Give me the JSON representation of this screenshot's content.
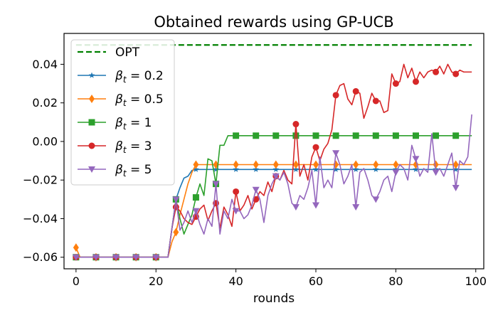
{
  "chart_data": {
    "type": "line",
    "title": "Obtained rewards using GP-UCB",
    "xlabel": "rounds",
    "ylabel": "",
    "xlim": [
      -3,
      102
    ],
    "ylim": [
      -0.066,
      0.056
    ],
    "xticks": [
      0,
      20,
      40,
      60,
      80,
      100
    ],
    "xtick_labels": [
      "0",
      "20",
      "40",
      "60",
      "80",
      "100"
    ],
    "yticks": [
      -0.06,
      -0.04,
      -0.02,
      0.0,
      0.02,
      0.04
    ],
    "ytick_labels": [
      "−0.06",
      "−0.04",
      "−0.02",
      "0.00",
      "0.02",
      "0.04"
    ],
    "grid": false,
    "legend_position": "top-left",
    "marker_every": 5,
    "series": [
      {
        "name": "OPT",
        "legend": {
          "main": "OPT"
        },
        "color": "#008000",
        "style": "dashed",
        "marker": "none",
        "x": [
          0,
          99
        ],
        "y": [
          0.05,
          0.05
        ]
      },
      {
        "name": "β_t = 0.2",
        "legend": {
          "main": "β",
          "sub": "t",
          "rest": " = 0.2"
        },
        "color": "#1f77b4",
        "style": "solid",
        "marker": "star",
        "x": [
          0,
          1,
          2,
          3,
          4,
          5,
          6,
          7,
          8,
          9,
          10,
          11,
          12,
          13,
          14,
          15,
          16,
          17,
          18,
          19,
          20,
          21,
          22,
          23,
          24,
          25,
          26,
          27,
          28,
          29,
          30,
          31,
          32,
          33,
          34,
          35,
          36,
          37,
          38,
          39,
          40,
          41,
          42,
          43,
          44,
          45,
          46,
          47,
          48,
          49,
          50,
          51,
          52,
          53,
          54,
          55,
          56,
          57,
          58,
          59,
          60,
          61,
          62,
          63,
          64,
          65,
          66,
          67,
          68,
          69,
          70,
          71,
          72,
          73,
          74,
          75,
          76,
          77,
          78,
          79,
          80,
          81,
          82,
          83,
          84,
          85,
          86,
          87,
          88,
          89,
          90,
          91,
          92,
          93,
          94,
          95,
          96,
          97,
          98,
          99
        ],
        "y": [
          -0.06,
          -0.06,
          -0.06,
          -0.06,
          -0.06,
          -0.06,
          -0.06,
          -0.06,
          -0.06,
          -0.06,
          -0.06,
          -0.06,
          -0.06,
          -0.06,
          -0.06,
          -0.06,
          -0.06,
          -0.06,
          -0.06,
          -0.06,
          -0.06,
          -0.06,
          -0.06,
          -0.06,
          -0.045,
          -0.03,
          -0.024,
          -0.019,
          -0.018,
          -0.015,
          -0.0145,
          -0.0145,
          -0.0145,
          -0.0145,
          -0.0145,
          -0.0145,
          -0.0145,
          -0.0145,
          -0.0145,
          -0.0145,
          -0.0145,
          -0.0145,
          -0.0145,
          -0.0145,
          -0.0145,
          -0.0145,
          -0.0145,
          -0.0145,
          -0.0145,
          -0.0145,
          -0.0145,
          -0.0145,
          -0.0145,
          -0.0145,
          -0.0145,
          -0.0145,
          -0.0145,
          -0.0145,
          -0.0145,
          -0.0145,
          -0.0145,
          -0.0145,
          -0.0145,
          -0.0145,
          -0.0145,
          -0.0145,
          -0.0145,
          -0.0145,
          -0.0145,
          -0.0145,
          -0.0145,
          -0.0145,
          -0.0145,
          -0.0145,
          -0.0145,
          -0.0145,
          -0.0145,
          -0.0145,
          -0.0145,
          -0.0145,
          -0.0145,
          -0.0145,
          -0.0145,
          -0.0145,
          -0.0145,
          -0.0145,
          -0.0145,
          -0.0145,
          -0.0145,
          -0.0145,
          -0.0145,
          -0.0145,
          -0.0145,
          -0.0145,
          -0.0145,
          -0.0145,
          -0.0145,
          -0.0145,
          -0.0145,
          -0.0145
        ]
      },
      {
        "name": "β_t = 0.5",
        "legend": {
          "main": "β",
          "sub": "t",
          "rest": " = 0.5"
        },
        "color": "#ff7f0e",
        "style": "solid",
        "marker": "diamond",
        "x": [
          0,
          1,
          2,
          3,
          4,
          5,
          6,
          7,
          8,
          9,
          10,
          11,
          12,
          13,
          14,
          15,
          16,
          17,
          18,
          19,
          20,
          21,
          22,
          23,
          24,
          25,
          26,
          27,
          28,
          29,
          30,
          31,
          32,
          33,
          34,
          35,
          36,
          37,
          38,
          39,
          40,
          41,
          42,
          43,
          44,
          45,
          46,
          47,
          48,
          49,
          50,
          51,
          52,
          53,
          54,
          55,
          56,
          57,
          58,
          59,
          60,
          61,
          62,
          63,
          64,
          65,
          66,
          67,
          68,
          69,
          70,
          71,
          72,
          73,
          74,
          75,
          76,
          77,
          78,
          79,
          80,
          81,
          82,
          83,
          84,
          85,
          86,
          87,
          88,
          89,
          90,
          91,
          92,
          93,
          94,
          95,
          96,
          97,
          98,
          99
        ],
        "y": [
          -0.055,
          -0.06,
          -0.06,
          -0.06,
          -0.06,
          -0.06,
          -0.06,
          -0.06,
          -0.06,
          -0.06,
          -0.06,
          -0.06,
          -0.06,
          -0.06,
          -0.06,
          -0.06,
          -0.06,
          -0.06,
          -0.06,
          -0.06,
          -0.06,
          -0.06,
          -0.06,
          -0.06,
          -0.052,
          -0.047,
          -0.038,
          -0.03,
          -0.022,
          -0.016,
          -0.012,
          -0.012,
          -0.012,
          -0.012,
          -0.012,
          -0.012,
          -0.012,
          -0.012,
          -0.012,
          -0.012,
          -0.012,
          -0.012,
          -0.012,
          -0.012,
          -0.012,
          -0.012,
          -0.012,
          -0.012,
          -0.012,
          -0.012,
          -0.012,
          -0.012,
          -0.012,
          -0.012,
          -0.012,
          -0.012,
          -0.012,
          -0.012,
          -0.012,
          -0.012,
          -0.012,
          -0.012,
          -0.012,
          -0.012,
          -0.012,
          -0.012,
          -0.012,
          -0.012,
          -0.012,
          -0.012,
          -0.012,
          -0.012,
          -0.012,
          -0.012,
          -0.012,
          -0.012,
          -0.012,
          -0.012,
          -0.012,
          -0.012,
          -0.012,
          -0.012,
          -0.012,
          -0.012,
          -0.012,
          -0.012,
          -0.012,
          -0.012,
          -0.012,
          -0.012,
          -0.012,
          -0.012,
          -0.012,
          -0.012,
          -0.012,
          -0.012,
          -0.012,
          -0.012,
          -0.012,
          -0.012
        ]
      },
      {
        "name": "β_t = 1",
        "legend": {
          "main": "β",
          "sub": "t",
          "rest": " = 1"
        },
        "color": "#2ca02c",
        "style": "solid",
        "marker": "square",
        "x": [
          0,
          1,
          2,
          3,
          4,
          5,
          6,
          7,
          8,
          9,
          10,
          11,
          12,
          13,
          14,
          15,
          16,
          17,
          18,
          19,
          20,
          21,
          22,
          23,
          24,
          25,
          26,
          27,
          28,
          29,
          30,
          31,
          32,
          33,
          34,
          35,
          36,
          37,
          38,
          39,
          40,
          41,
          42,
          43,
          44,
          45,
          46,
          47,
          48,
          49,
          50,
          51,
          52,
          53,
          54,
          55,
          56,
          57,
          58,
          59,
          60,
          61,
          62,
          63,
          64,
          65,
          66,
          67,
          68,
          69,
          70,
          71,
          72,
          73,
          74,
          75,
          76,
          77,
          78,
          79,
          80,
          81,
          82,
          83,
          84,
          85,
          86,
          87,
          88,
          89,
          90,
          91,
          92,
          93,
          94,
          95,
          96,
          97,
          98,
          99
        ],
        "y": [
          -0.06,
          -0.06,
          -0.06,
          -0.06,
          -0.06,
          -0.06,
          -0.06,
          -0.06,
          -0.06,
          -0.06,
          -0.06,
          -0.06,
          -0.06,
          -0.06,
          -0.06,
          -0.06,
          -0.06,
          -0.06,
          -0.06,
          -0.06,
          -0.06,
          -0.06,
          -0.06,
          -0.06,
          -0.045,
          -0.03,
          -0.04,
          -0.048,
          -0.043,
          -0.038,
          -0.029,
          -0.022,
          -0.028,
          -0.009,
          -0.01,
          -0.022,
          -0.002,
          -0.002,
          0.003,
          0.003,
          0.003,
          0.003,
          0.003,
          0.003,
          0.003,
          0.003,
          0.003,
          0.003,
          0.003,
          0.003,
          0.003,
          0.003,
          0.003,
          0.003,
          0.003,
          0.003,
          0.003,
          0.003,
          0.003,
          0.003,
          0.003,
          0.003,
          0.003,
          0.003,
          0.003,
          0.003,
          0.003,
          0.003,
          0.003,
          0.003,
          0.003,
          0.003,
          0.003,
          0.003,
          0.003,
          0.003,
          0.003,
          0.003,
          0.003,
          0.003,
          0.003,
          0.003,
          0.003,
          0.003,
          0.003,
          0.003,
          0.003,
          0.003,
          0.003,
          0.003,
          0.003,
          0.003,
          0.003,
          0.003,
          0.003,
          0.003,
          0.003,
          0.003,
          0.003,
          0.003
        ]
      },
      {
        "name": "β_t = 3",
        "legend": {
          "main": "β",
          "sub": "t",
          "rest": " = 3"
        },
        "color": "#d62728",
        "style": "solid",
        "marker": "circle",
        "x": [
          0,
          1,
          2,
          3,
          4,
          5,
          6,
          7,
          8,
          9,
          10,
          11,
          12,
          13,
          14,
          15,
          16,
          17,
          18,
          19,
          20,
          21,
          22,
          23,
          24,
          25,
          26,
          27,
          28,
          29,
          30,
          31,
          32,
          33,
          34,
          35,
          36,
          37,
          38,
          39,
          40,
          41,
          42,
          43,
          44,
          45,
          46,
          47,
          48,
          49,
          50,
          51,
          52,
          53,
          54,
          55,
          56,
          57,
          58,
          59,
          60,
          61,
          62,
          63,
          64,
          65,
          66,
          67,
          68,
          69,
          70,
          71,
          72,
          73,
          74,
          75,
          76,
          77,
          78,
          79,
          80,
          81,
          82,
          83,
          84,
          85,
          86,
          87,
          88,
          89,
          90,
          91,
          92,
          93,
          94,
          95,
          96,
          97,
          98,
          99
        ],
        "y": [
          -0.06,
          -0.06,
          -0.06,
          -0.06,
          -0.06,
          -0.06,
          -0.06,
          -0.06,
          -0.06,
          -0.06,
          -0.06,
          -0.06,
          -0.06,
          -0.06,
          -0.06,
          -0.06,
          -0.06,
          -0.06,
          -0.06,
          -0.06,
          -0.06,
          -0.06,
          -0.06,
          -0.06,
          -0.045,
          -0.034,
          -0.036,
          -0.04,
          -0.042,
          -0.043,
          -0.039,
          -0.035,
          -0.033,
          -0.041,
          -0.036,
          -0.032,
          -0.045,
          -0.034,
          -0.038,
          -0.044,
          -0.026,
          -0.036,
          -0.033,
          -0.028,
          -0.035,
          -0.03,
          -0.026,
          -0.028,
          -0.021,
          -0.026,
          -0.018,
          -0.02,
          -0.015,
          -0.02,
          -0.022,
          0.009,
          -0.018,
          -0.012,
          -0.02,
          -0.008,
          -0.003,
          -0.01,
          -0.004,
          -0.001,
          0.006,
          0.024,
          0.029,
          0.03,
          0.022,
          0.019,
          0.026,
          0.025,
          0.012,
          0.018,
          0.025,
          0.021,
          0.021,
          0.015,
          0.016,
          0.035,
          0.03,
          0.031,
          0.04,
          0.033,
          0.038,
          0.031,
          0.036,
          0.033,
          0.036,
          0.037,
          0.036,
          0.039,
          0.035,
          0.04,
          0.036,
          0.035,
          0.037,
          0.036,
          0.036,
          0.036
        ]
      },
      {
        "name": "β_t = 5",
        "legend": {
          "main": "β",
          "sub": "t",
          "rest": " = 5"
        },
        "color": "#9467bd",
        "style": "solid",
        "marker": "triangle-down",
        "x": [
          0,
          1,
          2,
          3,
          4,
          5,
          6,
          7,
          8,
          9,
          10,
          11,
          12,
          13,
          14,
          15,
          16,
          17,
          18,
          19,
          20,
          21,
          22,
          23,
          24,
          25,
          26,
          27,
          28,
          29,
          30,
          31,
          32,
          33,
          34,
          35,
          36,
          37,
          38,
          39,
          40,
          41,
          42,
          43,
          44,
          45,
          46,
          47,
          48,
          49,
          50,
          51,
          52,
          53,
          54,
          55,
          56,
          57,
          58,
          59,
          60,
          61,
          62,
          63,
          64,
          65,
          66,
          67,
          68,
          69,
          70,
          71,
          72,
          73,
          74,
          75,
          76,
          77,
          78,
          79,
          80,
          81,
          82,
          83,
          84,
          85,
          86,
          87,
          88,
          89,
          90,
          91,
          92,
          93,
          94,
          95,
          96,
          97,
          98,
          99
        ],
        "y": [
          -0.06,
          -0.06,
          -0.06,
          -0.06,
          -0.06,
          -0.06,
          -0.06,
          -0.06,
          -0.06,
          -0.06,
          -0.06,
          -0.06,
          -0.06,
          -0.06,
          -0.06,
          -0.06,
          -0.06,
          -0.06,
          -0.06,
          -0.06,
          -0.06,
          -0.06,
          -0.06,
          -0.06,
          -0.045,
          -0.03,
          -0.046,
          -0.042,
          -0.036,
          -0.042,
          -0.036,
          -0.043,
          -0.048,
          -0.04,
          -0.044,
          -0.022,
          -0.048,
          -0.036,
          -0.04,
          -0.03,
          -0.036,
          -0.036,
          -0.04,
          -0.038,
          -0.033,
          -0.025,
          -0.03,
          -0.042,
          -0.028,
          -0.022,
          -0.018,
          -0.02,
          -0.016,
          -0.022,
          -0.032,
          -0.034,
          -0.028,
          -0.03,
          -0.024,
          -0.015,
          -0.033,
          -0.008,
          -0.024,
          -0.02,
          -0.024,
          -0.006,
          -0.012,
          -0.022,
          -0.018,
          -0.012,
          -0.034,
          -0.016,
          -0.014,
          -0.02,
          -0.028,
          -0.03,
          -0.026,
          -0.02,
          -0.018,
          -0.026,
          -0.016,
          -0.012,
          -0.014,
          -0.02,
          -0.002,
          -0.009,
          -0.018,
          -0.014,
          -0.016,
          0.004,
          -0.016,
          -0.014,
          -0.018,
          -0.012,
          -0.006,
          -0.024,
          -0.01,
          -0.012,
          -0.008,
          0.014
        ]
      }
    ]
  }
}
